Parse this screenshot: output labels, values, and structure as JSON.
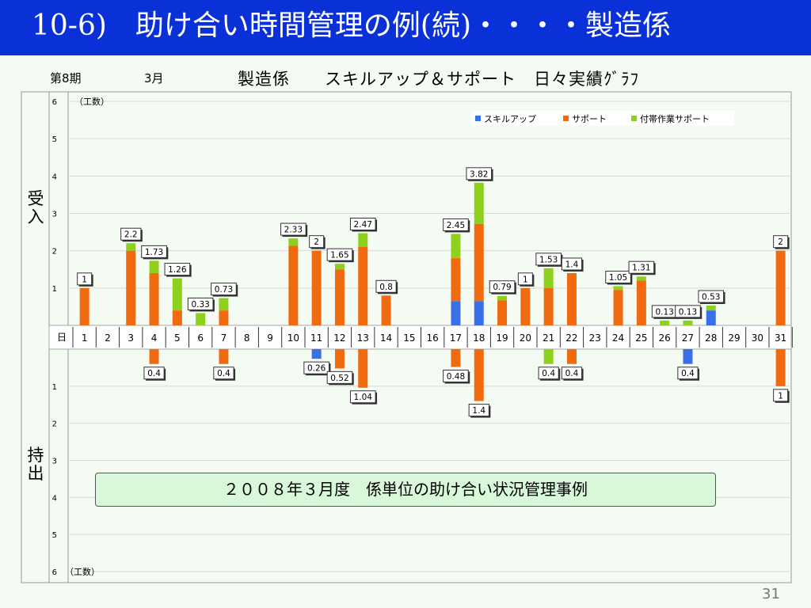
{
  "slide": {
    "title": "10-6)　助け合い時間管理の例(続)・・・・製造係",
    "period": "第8期",
    "month": "3月",
    "chart_heading": "製造係　　スキルアップ＆サポート　日々実績ｸﾞﾗﾌ",
    "footer_note": "２００８年３月度　係単位の助け合い状況管理事例",
    "page_number": "31"
  },
  "chart_data": {
    "type": "bar",
    "stacked": true,
    "x_label": "日",
    "upper_section_label": "受入",
    "lower_section_label": "持出",
    "unit_label": "（工数）",
    "y_ticks": [
      "1",
      "2",
      "3",
      "4",
      "5",
      "6"
    ],
    "ylim": [
      0,
      6
    ],
    "legend_position": "top-right",
    "grid": true,
    "categories": [
      "1",
      "2",
      "3",
      "4",
      "5",
      "6",
      "7",
      "8",
      "9",
      "10",
      "11",
      "12",
      "13",
      "14",
      "15",
      "16",
      "17",
      "18",
      "19",
      "20",
      "21",
      "22",
      "23",
      "24",
      "25",
      "26",
      "27",
      "28",
      "29",
      "30",
      "31"
    ],
    "colors": {
      "skill_up": "#3b6fe8",
      "support": "#f06a0f",
      "incidental": "#8ed11c"
    },
    "received": {
      "series": [
        {
          "name": "スキルアップ",
          "key": "skill_up",
          "values": [
            0,
            0,
            0,
            0,
            0,
            0,
            0,
            0,
            0,
            0,
            0,
            0,
            0,
            0,
            0,
            0,
            0.65,
            0.65,
            0,
            0,
            0,
            0,
            0,
            0,
            0,
            0,
            0,
            0.4,
            0,
            0,
            0
          ]
        },
        {
          "name": "サポート",
          "key": "support",
          "values": [
            1,
            0,
            2,
            1.4,
            0.4,
            0,
            0.4,
            0,
            0,
            2.13,
            2,
            1.5,
            2.1,
            0.8,
            0,
            0,
            1.15,
            2.07,
            0.67,
            1,
            1,
            1.4,
            0,
            0.95,
            1.2,
            0,
            0,
            0,
            0,
            0,
            2
          ]
        },
        {
          "name": "付帯作業サポート",
          "key": "incidental",
          "values": [
            0,
            0,
            0.2,
            0.33,
            0.86,
            0.33,
            0.33,
            0,
            0,
            0.2,
            0,
            0.15,
            0.37,
            0,
            0,
            0,
            0.65,
            1.1,
            0.12,
            0,
            0.53,
            0,
            0,
            0.1,
            0.11,
            0.13,
            0.13,
            0.13,
            0,
            0,
            0
          ]
        }
      ],
      "labels": [
        "1",
        "",
        "2.2",
        "1.73",
        "1.26",
        "0.33",
        "0.73",
        "",
        "",
        "2.33",
        "2",
        "1.65",
        "2.47",
        "0.8",
        "",
        "",
        "2.45",
        "3.82",
        "0.79",
        "1",
        "1.53",
        "1.4",
        "",
        "1.05",
        "1.31",
        "0.13",
        "0.13",
        "0.53",
        "",
        "",
        "2"
      ]
    },
    "given": {
      "series": [
        {
          "name": "スキルアップ",
          "key": "skill_up",
          "values": [
            0,
            0,
            0,
            0,
            0,
            0,
            0,
            0,
            0,
            0,
            0.26,
            0,
            0,
            0,
            0,
            0,
            0,
            0,
            0,
            0,
            0,
            0,
            0,
            0,
            0,
            0,
            0.4,
            0,
            0,
            0,
            0
          ]
        },
        {
          "name": "サポート",
          "key": "support",
          "values": [
            0,
            0,
            0,
            0.4,
            0,
            0,
            0.4,
            0,
            0,
            0,
            0,
            0.52,
            1.04,
            0,
            0,
            0,
            0.48,
            1.4,
            0,
            0,
            0,
            0.4,
            0,
            0,
            0,
            0,
            0,
            0,
            0,
            0,
            1
          ]
        },
        {
          "name": "付帯作業サポート",
          "key": "incidental",
          "values": [
            0,
            0,
            0,
            0,
            0,
            0,
            0,
            0,
            0,
            0,
            0,
            0,
            0,
            0,
            0,
            0,
            0,
            0,
            0,
            0,
            0.4,
            0,
            0,
            0,
            0,
            0,
            0,
            0,
            0,
            0,
            0
          ]
        }
      ],
      "labels": [
        "",
        "",
        "",
        "0.4",
        "",
        "",
        "0.4",
        "",
        "",
        "",
        "0.26",
        "0.52",
        "1.04",
        "",
        "",
        "",
        "0.48",
        "1.4",
        "",
        "",
        "0.4",
        "0.4",
        "",
        "",
        "",
        "",
        "0.4",
        "",
        "",
        "",
        "1"
      ]
    }
  }
}
